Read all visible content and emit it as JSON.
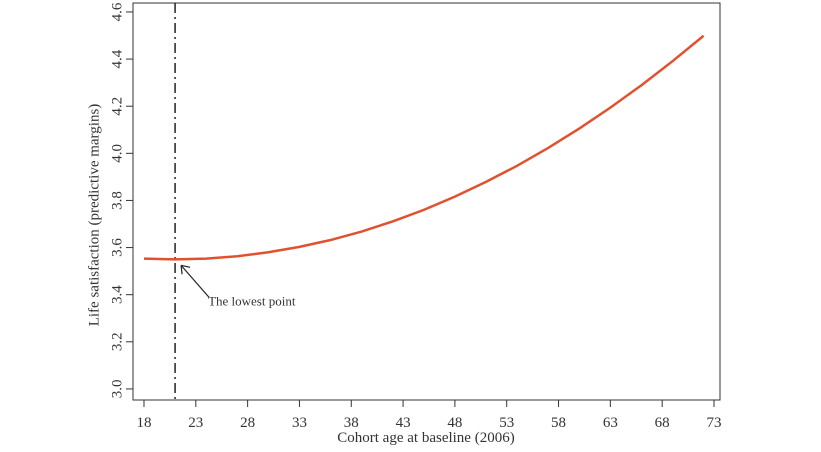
{
  "chart_data": {
    "type": "line",
    "x_label": "Cohort age at baseline (2006)",
    "y_label": "Life satisfaction (predictive margins)",
    "x": [
      18,
      21,
      24,
      27,
      30,
      33,
      36,
      39,
      42,
      45,
      48,
      51,
      54,
      57,
      60,
      63,
      66,
      69,
      72
    ],
    "series": [
      {
        "color": "#e0522f",
        "values": [
          3.553,
          3.55,
          3.553,
          3.563,
          3.58,
          3.603,
          3.632,
          3.668,
          3.711,
          3.76,
          3.816,
          3.879,
          3.947,
          4.023,
          4.105,
          4.194,
          4.289,
          4.391,
          4.499
        ]
      }
    ],
    "xlim": [
      16.94,
      73.58
    ],
    "ylim": [
      2.953,
      4.638
    ],
    "xticks": [
      18,
      23,
      28,
      33,
      38,
      43,
      48,
      53,
      58,
      63,
      68,
      73
    ],
    "yticks": [
      {
        "value": 3,
        "label": "3.0"
      },
      3.2,
      3.4,
      3.6,
      3.8,
      {
        "value": 4,
        "label": "4.0"
      },
      4.2,
      4.4,
      4.6
    ],
    "reference_line": {
      "x": 21,
      "annotation": "The lowest point"
    }
  }
}
